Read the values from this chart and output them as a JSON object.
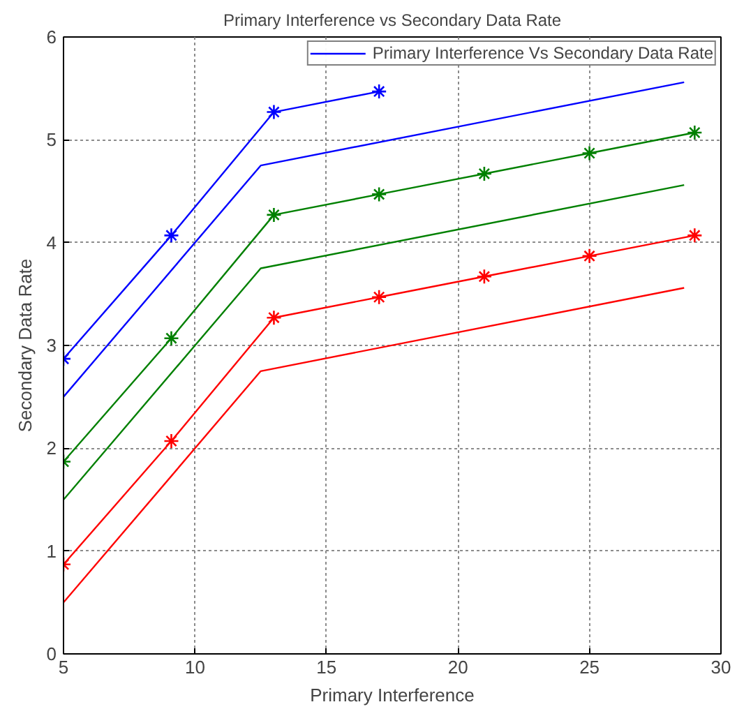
{
  "chart_data": {
    "type": "line",
    "title": "Primary Interference vs Secondary Data Rate",
    "xlabel": "Primary Interference",
    "ylabel": "Secondary Data Rate",
    "xlim": [
      5,
      30
    ],
    "ylim": [
      0,
      6
    ],
    "xticks": [
      5,
      10,
      15,
      20,
      25,
      30
    ],
    "yticks": [
      0,
      1,
      2,
      3,
      4,
      5,
      6
    ],
    "grid": true,
    "legend": "top right",
    "series": [
      {
        "name": "Primary Interference Vs Secondary Data Rate",
        "color": "#0000ff",
        "marker": "none",
        "x": [
          5,
          12.5,
          28.6
        ],
        "values": [
          2.5,
          4.75,
          5.56
        ]
      },
      {
        "color": "#0000ff",
        "marker": "cross",
        "x": [
          5,
          9.1,
          13,
          17
        ],
        "values": [
          2.87,
          4.07,
          5.27,
          5.47
        ]
      },
      {
        "color": "#008000",
        "marker": "none",
        "x": [
          5,
          12.5,
          28.6
        ],
        "values": [
          1.5,
          3.75,
          4.56
        ]
      },
      {
        "color": "#008000",
        "marker": "cross",
        "x": [
          5,
          9.1,
          13,
          17,
          21,
          25,
          29
        ],
        "values": [
          1.87,
          3.07,
          4.27,
          4.47,
          4.67,
          4.87,
          5.07
        ]
      },
      {
        "color": "#ff0000",
        "marker": "none",
        "x": [
          5,
          12.5,
          28.6
        ],
        "values": [
          0.5,
          2.75,
          3.56
        ]
      },
      {
        "color": "#ff0000",
        "marker": "cross",
        "x": [
          5,
          9.1,
          13,
          17,
          21,
          25,
          29
        ],
        "values": [
          0.87,
          2.07,
          3.27,
          3.47,
          3.67,
          3.87,
          4.07
        ]
      }
    ]
  }
}
